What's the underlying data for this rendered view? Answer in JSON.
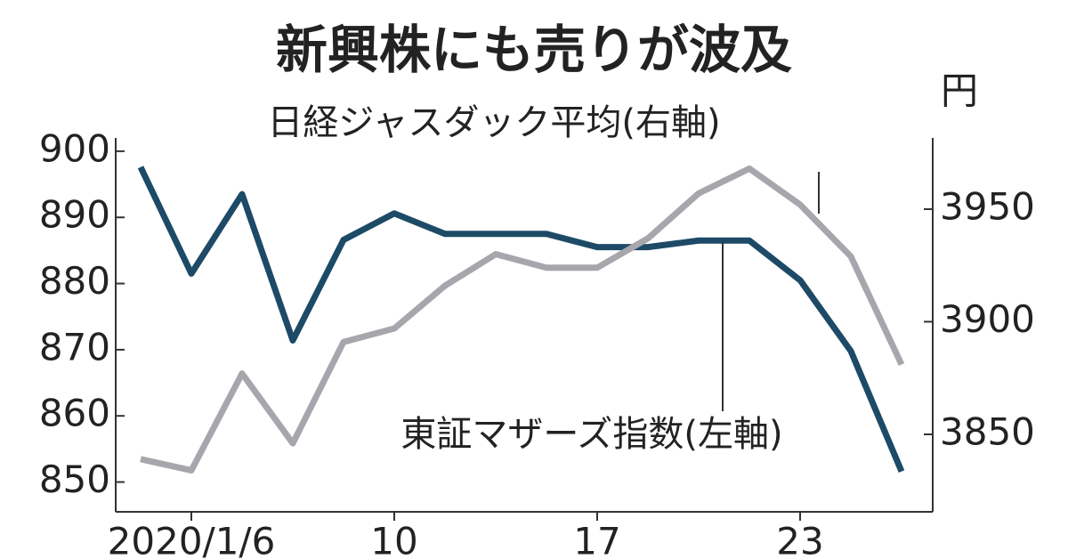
{
  "chart_data": {
    "type": "line",
    "title": "新興株にも売りが波及",
    "unit_label": "円",
    "categories": [
      null,
      "2020/1/6",
      null,
      null,
      null,
      "10",
      null,
      null,
      null,
      "17",
      null,
      null,
      null,
      "23",
      null,
      null
    ],
    "series": [
      {
        "name": "東証マザーズ指数(左軸)",
        "color": "#1d4a66",
        "axis": "y",
        "values": [
          897.6,
          881.5,
          893.5,
          871.4,
          886.6,
          890.6,
          887.5,
          887.5,
          887.5,
          885.5,
          885.5,
          886.5,
          886.5,
          880.5,
          869.8,
          851.6
        ]
      },
      {
        "name": "日経ジャスダック平均(右軸)",
        "color": "#a6a6ac",
        "axis": "y2",
        "values": [
          3839,
          3834,
          3877,
          3846,
          3891,
          3897,
          3916,
          3930,
          3924,
          3924,
          3937,
          3957,
          3968,
          3952,
          3929,
          3881
        ]
      }
    ],
    "ylim": [
      845.5,
      902
    ],
    "yticks": [
      850,
      860,
      870,
      880,
      890,
      900
    ],
    "y2lim": [
      3815.6,
      3981.6
    ],
    "y2ticks": [
      3850,
      3900,
      3950
    ]
  }
}
